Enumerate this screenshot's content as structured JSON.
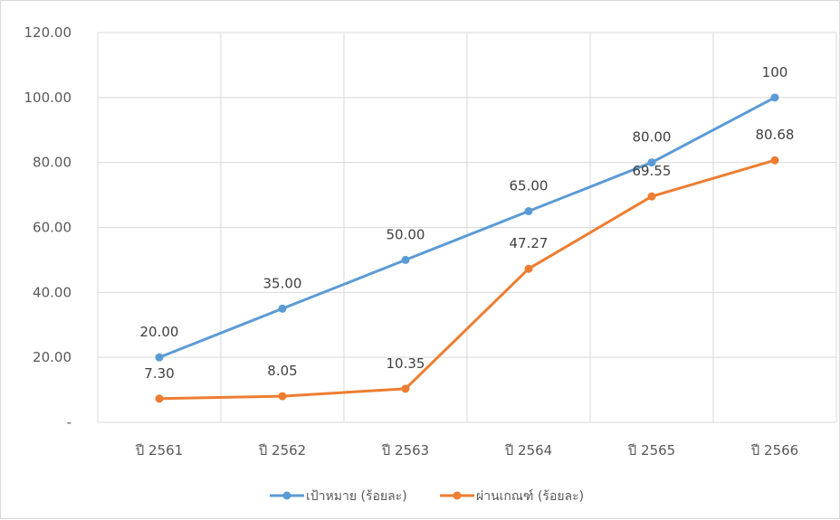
{
  "chart_data": {
    "type": "line",
    "title": "",
    "xlabel": "",
    "ylabel": "",
    "categories": [
      "ปี 2561",
      "ปี 2562",
      "ปี 2563",
      "ปี 2564",
      "ปี 2565",
      "ปี 2566"
    ],
    "ylim": [
      0,
      120
    ],
    "yticks": [
      0,
      20,
      40,
      60,
      80,
      100,
      120
    ],
    "ytick_labels": [
      "-",
      "20.00",
      "40.00",
      "60.00",
      "80.00",
      "100.00",
      "120.00"
    ],
    "grid": true,
    "legend_position": "bottom",
    "series": [
      {
        "name": "เป้าหมาย (ร้อยละ)",
        "color": "#5b9bd5",
        "values": [
          20,
          35,
          50,
          65,
          80,
          100
        ],
        "labels": [
          "20.00",
          "35.00",
          "50.00",
          "65.00",
          "80.00",
          "100"
        ]
      },
      {
        "name": "ผ่านเกณฑ์ (ร้อยละ)",
        "color": "#ed7d31",
        "values": [
          7.3,
          8.05,
          10.35,
          47.27,
          69.55,
          80.68
        ],
        "labels": [
          "7.30",
          "8.05",
          "10.35",
          "47.27",
          "69.55",
          "80.68"
        ]
      }
    ]
  }
}
